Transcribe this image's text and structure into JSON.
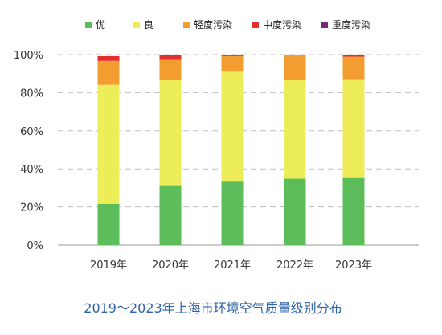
{
  "chart_data": {
    "type": "bar",
    "stacked": true,
    "title": "2019～2023年上海市环境空气质量级别分布",
    "xlabel": "",
    "ylabel": "",
    "ylim": [
      0,
      100
    ],
    "yticks": [
      "0%",
      "20%",
      "40%",
      "60%",
      "80%",
      "100%"
    ],
    "grid": true,
    "legend_position": "top",
    "categories": [
      "2019年",
      "2020年",
      "2021年",
      "2022年",
      "2023年"
    ],
    "series": [
      {
        "name": "优",
        "color": "#5dbd5a",
        "values": [
          21.6,
          31.4,
          33.7,
          34.8,
          35.6
        ]
      },
      {
        "name": "良",
        "color": "#eded5a",
        "values": [
          62.5,
          55.4,
          57.3,
          51.7,
          51.5
        ]
      },
      {
        "name": "轻度污染",
        "color": "#f39c2f",
        "values": [
          12.6,
          10.4,
          8.2,
          13.5,
          11.8
        ]
      },
      {
        "name": "中度污染",
        "color": "#e03030",
        "values": [
          2.5,
          2.2,
          0.5,
          0.0,
          0.5
        ]
      },
      {
        "name": "重度污染",
        "color": "#7a2a78",
        "values": [
          0.0,
          0.3,
          0.0,
          0.0,
          0.6
        ]
      }
    ],
    "caption_color": "#2f63a8"
  }
}
